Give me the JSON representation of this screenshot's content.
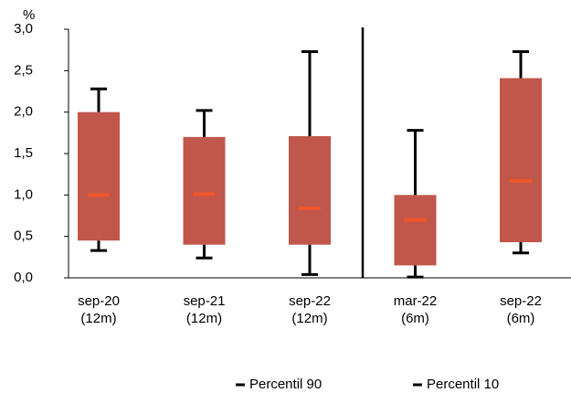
{
  "chart_data": {
    "type": "box",
    "y_label": "%",
    "categories": [
      [
        "sep-20",
        "(12m)"
      ],
      [
        "sep-21",
        "(12m)"
      ],
      [
        "sep-22",
        "(12m)"
      ],
      [
        "mar-22",
        "(6m)"
      ],
      [
        "sep-22",
        "(6m)"
      ]
    ],
    "series": [
      {
        "name": "Percentil 90",
        "color": "#000000",
        "values": [
          2.28,
          2.02,
          2.73,
          1.78,
          2.73
        ]
      },
      {
        "name": "Percentil 10",
        "color": "#000000",
        "values": [
          0.33,
          0.24,
          0.04,
          0.01,
          0.3
        ]
      }
    ],
    "box_high": [
      2.0,
      1.7,
      1.71,
      1.0,
      2.41
    ],
    "box_low": [
      0.45,
      0.4,
      0.4,
      0.15,
      0.43
    ],
    "median": [
      1.0,
      1.01,
      0.84,
      0.7,
      1.17
    ],
    "box_color": "#c0574a",
    "median_color": "#f0562a",
    "ylim": [
      0,
      3.0
    ],
    "yticks": [
      {
        "value": 0,
        "label": "0,0"
      },
      {
        "value": 0.5,
        "label": "0,5"
      },
      {
        "value": 1.0,
        "label": "1,0"
      },
      {
        "value": 1.5,
        "label": "1,5"
      },
      {
        "value": 2.0,
        "label": "2,0"
      },
      {
        "value": 2.5,
        "label": "2,5"
      },
      {
        "value": 3.0,
        "label": "3,0"
      }
    ],
    "legend": "bottom"
  }
}
